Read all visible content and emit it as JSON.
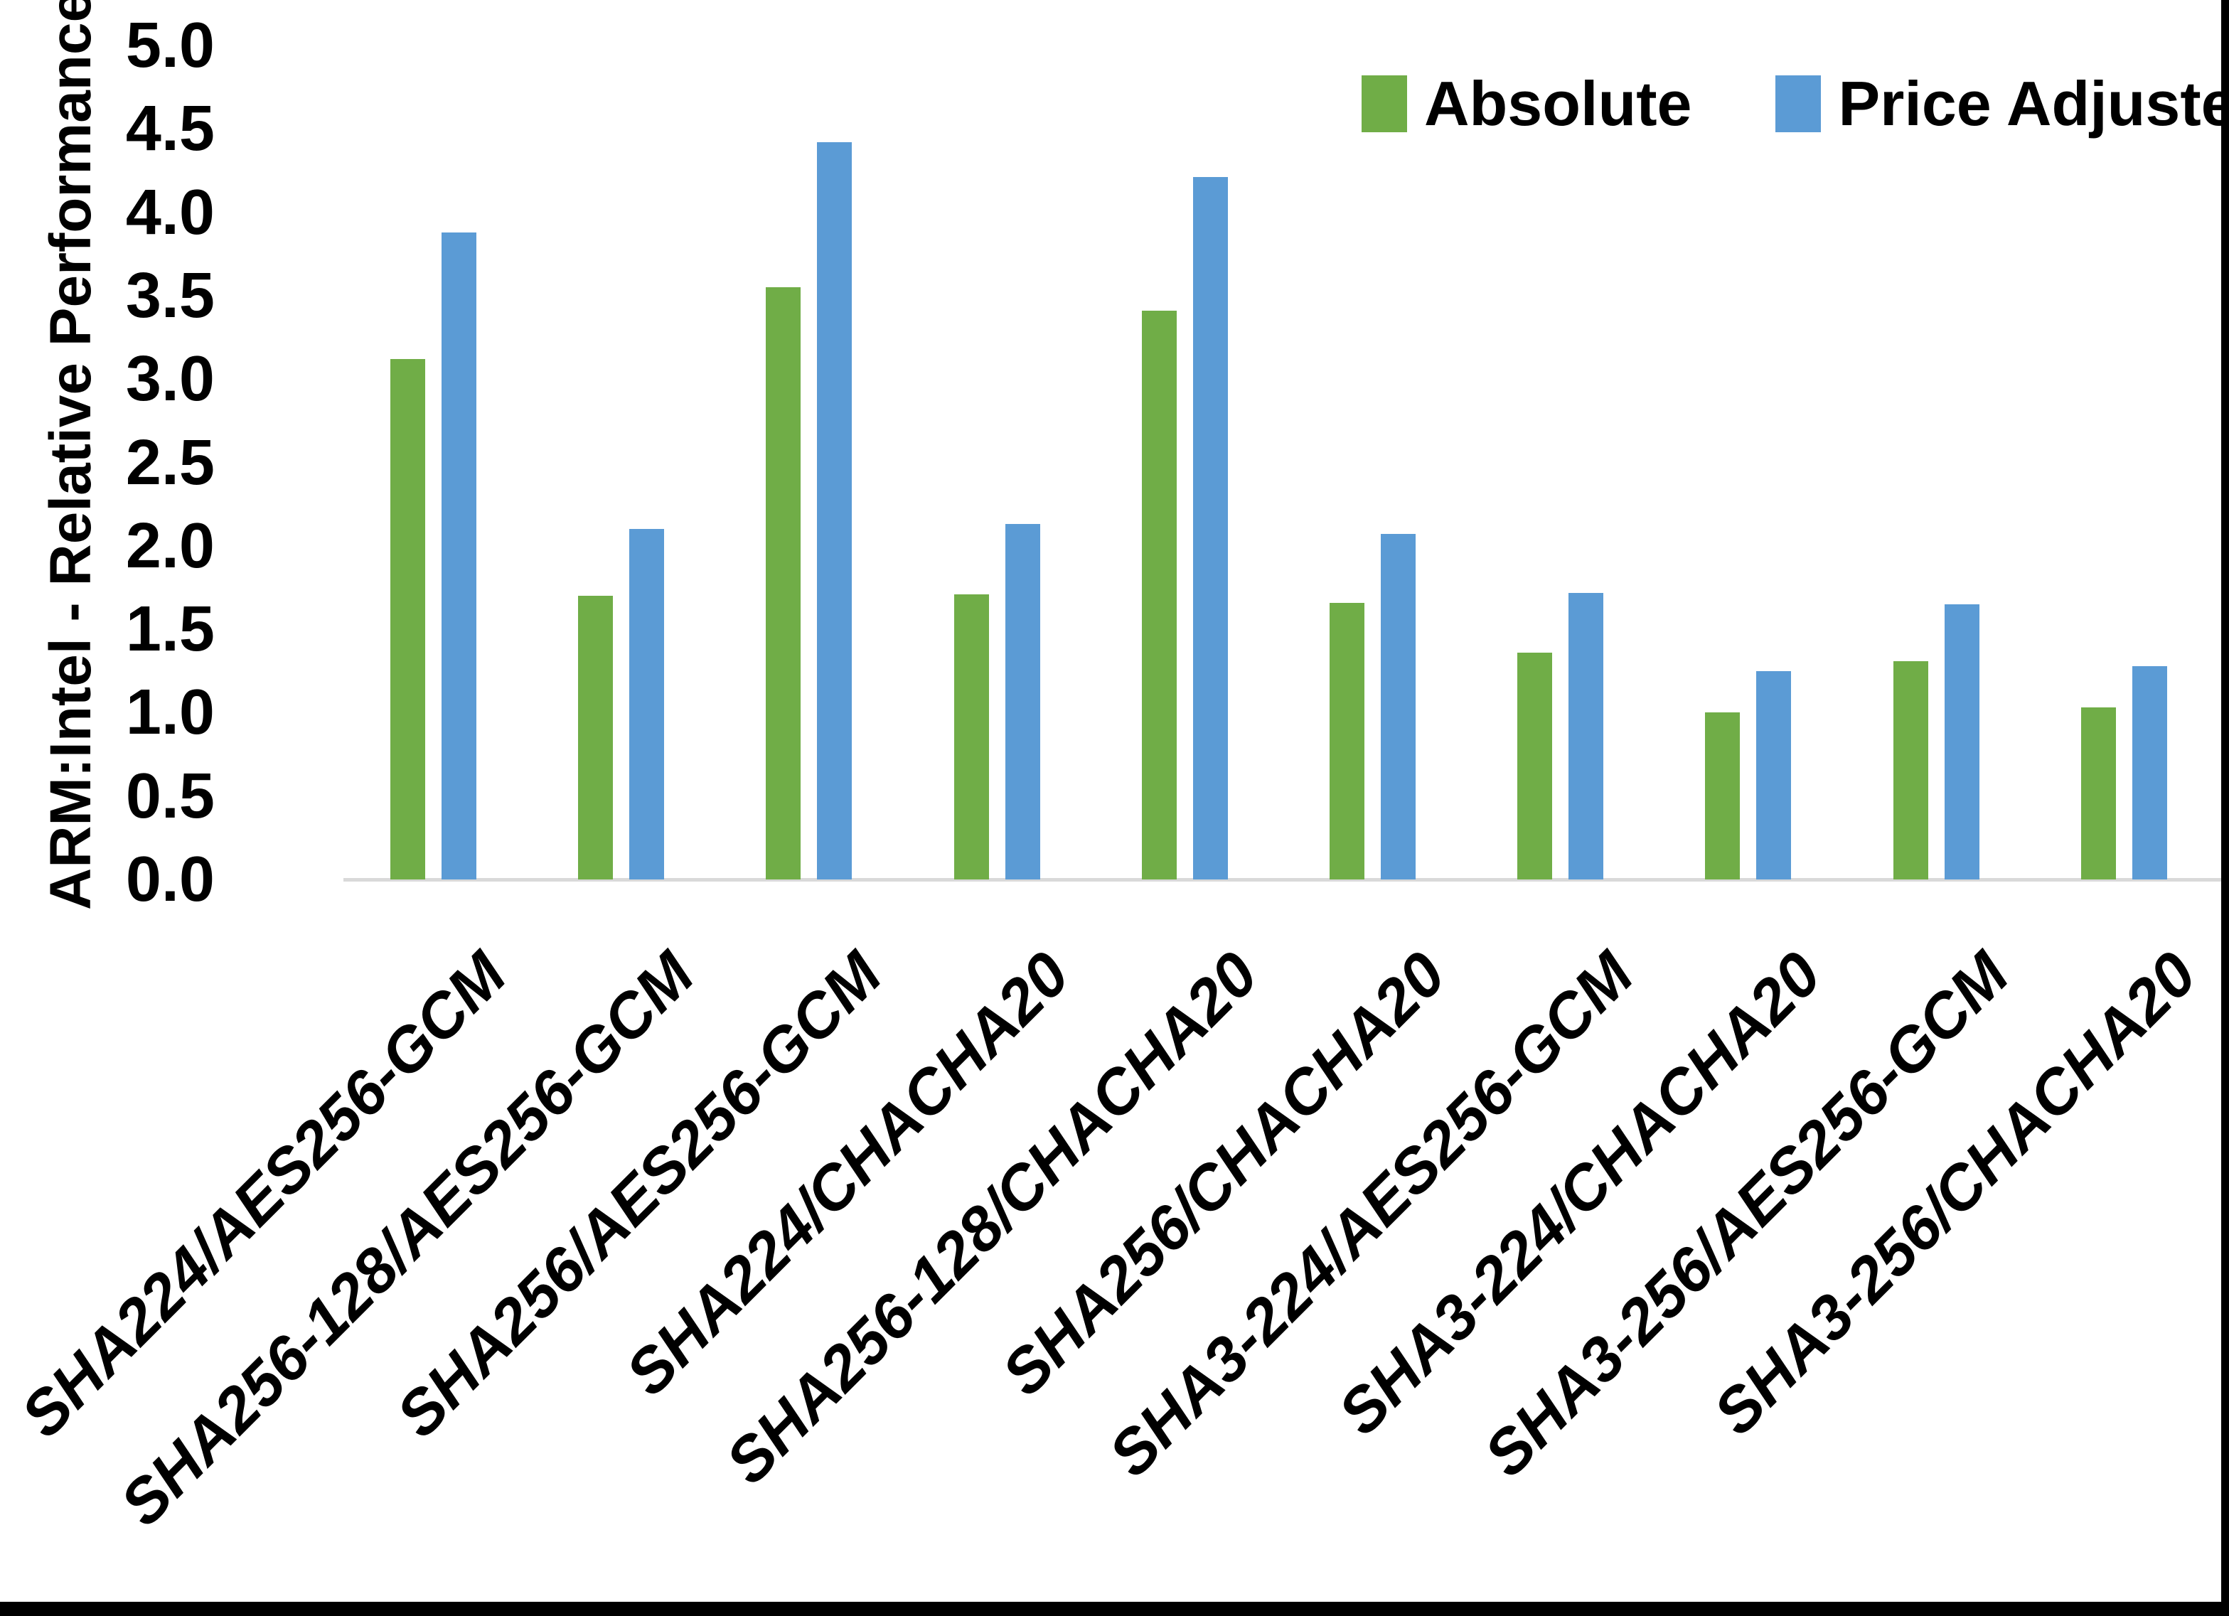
{
  "legend": {
    "absolute": "Absolute",
    "price_adjusted": "Price Adjusted"
  },
  "y_axis": {
    "title": "ARM:Intel - Relative Performance",
    "tick_labels": [
      "0.0",
      "0.5",
      "1.0",
      "1.5",
      "2.0",
      "2.5",
      "3.0",
      "3.5",
      "4.0",
      "4.5",
      "5.0"
    ]
  },
  "chart_data": {
    "type": "bar",
    "title": "",
    "xlabel": "",
    "ylabel": "ARM:Intel - Relative Performance",
    "ylim": [
      0,
      5
    ],
    "ytick_step": 0.5,
    "grid": false,
    "legend_position": "top-right",
    "categories": [
      "SHA224/AES256-GCM",
      "SHA256-128/AES256-GCM",
      "SHA256/AES256-GCM",
      "SHA224/CHACHA20",
      "SHA256-128/CHACHA20",
      "SHA256/CHACHA20",
      "SHA3-224/AES256-GCM",
      "SHA3-224/CHACHA20",
      "SHA3-256/AES256-GCM",
      "SHA3-256/CHACHA20"
    ],
    "series": [
      {
        "name": "Absolute",
        "color": "#70AD47",
        "values": [
          3.12,
          1.7,
          3.55,
          1.71,
          3.41,
          1.66,
          1.36,
          1.0,
          1.31,
          1.03
        ]
      },
      {
        "name": "Price Adjusted",
        "color": "#5B9BD5",
        "values": [
          3.88,
          2.1,
          4.42,
          2.13,
          4.21,
          2.07,
          1.72,
          1.25,
          1.65,
          1.28
        ]
      }
    ]
  }
}
